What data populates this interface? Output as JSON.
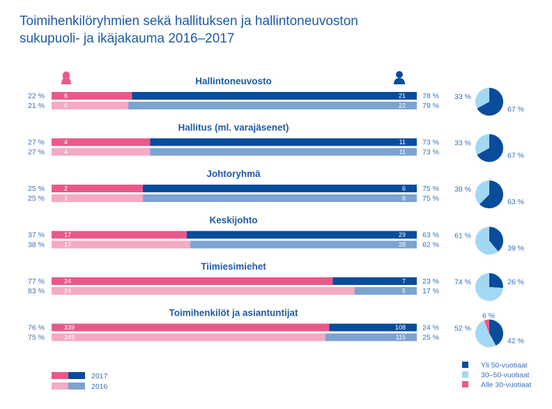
{
  "title_line1": "Toimihenkilöryhmien sekä hallituksen ja hallintoneuvoston",
  "title_line2": "sukupuoli- ja ikäjakauma 2016–2017",
  "colors": {
    "female_2017": "#e8598a",
    "female_2016": "#f4a9c4",
    "male_2017": "#0a4c9c",
    "male_2016": "#7ba4d1",
    "age_over50": "#0a4c9c",
    "age_30_50": "#a3d8f4",
    "age_under30": "#e8598a",
    "text": "#1f5aa6"
  },
  "icons": {
    "female": "female-person-icon",
    "male": "male-person-icon"
  },
  "chart_data": {
    "type": "bar",
    "subtype": "stacked-horizontal-100pct-with-pies",
    "title": "Toimihenkilöryhmien sekä hallituksen ja hallintoneuvoston sukupuoli- ja ikäjakauma 2016–2017",
    "groups": [
      {
        "name": "Hallintoneuvosto",
        "y2017": {
          "female_pct": "22 %",
          "female_count": "6",
          "male_count": "21",
          "male_pct": "78 %",
          "female_share": 22
        },
        "y2016": {
          "female_pct": "21 %",
          "female_count": "6",
          "male_count": "22",
          "male_pct": "79 %",
          "female_share": 21
        },
        "age": {
          "over50": 67,
          "age30_50": 33,
          "under30": 0,
          "labels": {
            "over50": "67 %",
            "age30_50": "33 %",
            "under30": ""
          }
        }
      },
      {
        "name": "Hallitus (ml. varajäsenet)",
        "y2017": {
          "female_pct": "27 %",
          "female_count": "4",
          "male_count": "11",
          "male_pct": "73 %",
          "female_share": 27
        },
        "y2016": {
          "female_pct": "27 %",
          "female_count": "4",
          "male_count": "11",
          "male_pct": "73 %",
          "female_share": 27
        },
        "age": {
          "over50": 67,
          "age30_50": 33,
          "under30": 0,
          "labels": {
            "over50": "67 %",
            "age30_50": "33 %",
            "under30": ""
          }
        }
      },
      {
        "name": "Johtoryhmä",
        "y2017": {
          "female_pct": "25 %",
          "female_count": "2",
          "male_count": "6",
          "male_pct": "75 %",
          "female_share": 25
        },
        "y2016": {
          "female_pct": "25 %",
          "female_count": "2",
          "male_count": "6",
          "male_pct": "75 %",
          "female_share": 25
        },
        "age": {
          "over50": 63,
          "age30_50": 38,
          "under30": 0,
          "labels": {
            "over50": "63 %",
            "age30_50": "38 %",
            "under30": ""
          }
        }
      },
      {
        "name": "Keskijohto",
        "y2017": {
          "female_pct": "37 %",
          "female_count": "17",
          "male_count": "29",
          "male_pct": "63 %",
          "female_share": 37
        },
        "y2016": {
          "female_pct": "38 %",
          "female_count": "17",
          "male_count": "28",
          "male_pct": "62 %",
          "female_share": 38
        },
        "age": {
          "over50": 39,
          "age30_50": 61,
          "under30": 0,
          "labels": {
            "over50": "39 %",
            "age30_50": "61 %",
            "under30": ""
          }
        }
      },
      {
        "name": "Tiimiesimiehet",
        "y2017": {
          "female_pct": "77 %",
          "female_count": "24",
          "male_count": "7",
          "male_pct": "23 %",
          "female_share": 77
        },
        "y2016": {
          "female_pct": "83 %",
          "female_count": "24",
          "male_count": "5",
          "male_pct": "17 %",
          "female_share": 83
        },
        "age": {
          "over50": 26,
          "age30_50": 74,
          "under30": 0,
          "labels": {
            "over50": "26 %",
            "age30_50": "74 %",
            "under30": ""
          }
        }
      },
      {
        "name": "Toimihenkilöt ja asiantuntijat",
        "y2017": {
          "female_pct": "76 %",
          "female_count": "339",
          "male_count": "108",
          "male_pct": "24 %",
          "female_share": 76
        },
        "y2016": {
          "female_pct": "75 %",
          "female_count": "349",
          "male_count": "115",
          "male_pct": "25 %",
          "female_share": 75
        },
        "age": {
          "over50": 42,
          "age30_50": 52,
          "under30": 6,
          "labels": {
            "over50": "42 %",
            "age30_50": "52 %",
            "under30": "6 %"
          }
        }
      }
    ],
    "legend_years": [
      "2017",
      "2016"
    ],
    "legend_age": [
      "Yli 50-vuotiaat",
      "30–50-vuotiaat",
      "Alle 30-vuotiaat"
    ]
  }
}
